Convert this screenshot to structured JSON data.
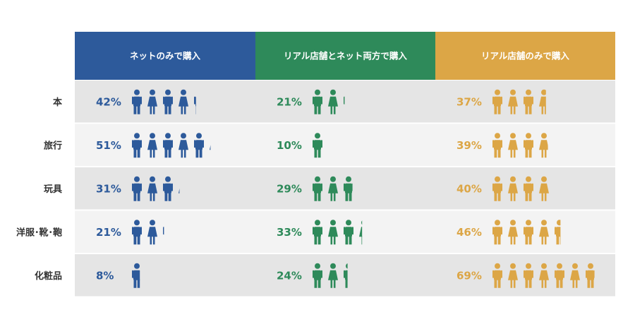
{
  "chart_data": {
    "type": "pictograph",
    "columns": [
      {
        "label": "ネットのみで購入",
        "color": "#2d5a9b"
      },
      {
        "label": "リアル店舗とネット両方で購入",
        "color": "#2e8a5a"
      },
      {
        "label": "リアル店舗のみで購入",
        "color": "#dca646"
      }
    ],
    "categories": [
      "本",
      "旅行",
      "玩具",
      "洋服･靴･鞄",
      "化粧品"
    ],
    "series": [
      {
        "name": "ネットのみで購入",
        "values": [
          42,
          51,
          31,
          21,
          8
        ]
      },
      {
        "name": "リアル店舗とネット両方で購入",
        "values": [
          21,
          10,
          29,
          33,
          24
        ]
      },
      {
        "name": "リアル店舗のみで購入",
        "values": [
          37,
          39,
          40,
          46,
          69
        ]
      }
    ],
    "value_suffix": "%",
    "unit_per_icon": 10,
    "row_colors": [
      "#e5e5e5",
      "#f3f3f3"
    ]
  }
}
